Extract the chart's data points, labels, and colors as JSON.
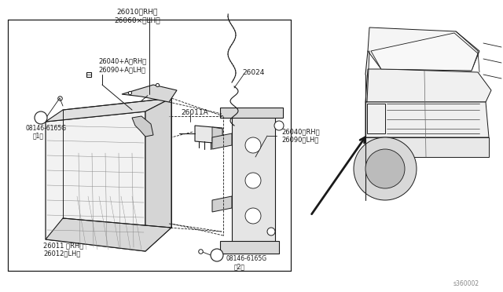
{
  "bg_color": "#ffffff",
  "lc": "#1a1a1a",
  "gray1": "#e8e8e8",
  "gray2": "#d0d0d0",
  "gray3": "#b8b8b8",
  "ref": "s360002",
  "labels": {
    "top_part1": "26010〈RH〉",
    "top_part2": "26060×〈LH〉",
    "upper_left1": "26040+A〈RH〉",
    "upper_left2": "26090+A〈LH〉",
    "mid_label": "26024",
    "bulb_label": "26011A",
    "bolt1_label": "08146-6165G",
    "bolt1_sub": "（1）",
    "right1": "26040〈RH〉",
    "right2": "26090〈LH〉",
    "lamp1": "26011 〈RH〉",
    "lamp2": "26012〈LH〉",
    "bolt2_label": "08146-6165G",
    "bolt2_sub": "（2）"
  }
}
